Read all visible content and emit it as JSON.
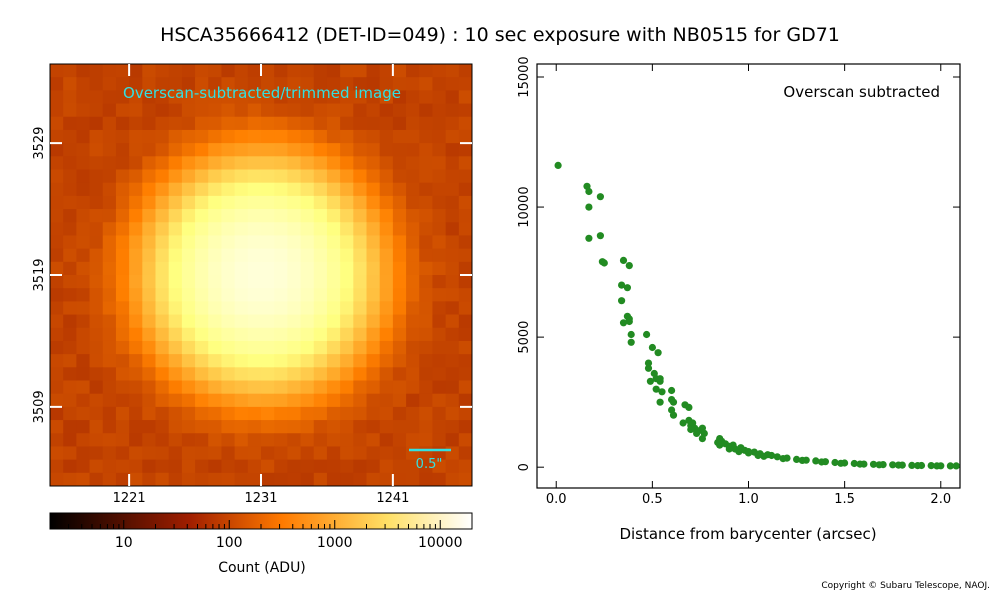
{
  "title": "HSCA35666412 (DET-ID=049) :  10 sec exposure with NB0515 for GD71",
  "copyright": "Copyright © Subaru Telescope, NAOJ.",
  "colors": {
    "scatter": "#228b22",
    "annotation": "#33e0e0"
  },
  "chart_data": [
    {
      "type": "heatmap",
      "title": "Overscan-subtracted/trimmed image",
      "colormap": "afmhot",
      "scale": "log",
      "x_ticks": [
        "1221",
        "1231",
        "1241"
      ],
      "y_ticks": [
        "3529",
        "3519",
        "3509"
      ],
      "x_range": [
        1215,
        1247
      ],
      "y_range": [
        3503,
        3535
      ],
      "peak": {
        "x": 1231,
        "y": 3519,
        "value": 10000
      },
      "scale_bar_label": "0.5\"",
      "colorbar": {
        "label": "Count (ADU)",
        "ticks": [
          "10",
          "100",
          "1000",
          "10000"
        ],
        "range": [
          2,
          20000
        ]
      }
    },
    {
      "type": "scatter",
      "title": "Overscan subtracted",
      "xlabel": "Distance from barycenter (arcsec)",
      "ylabel": "",
      "xlim": [
        -0.1,
        2.1
      ],
      "ylim": [
        -800,
        15500
      ],
      "x_ticks": [
        "0.0",
        "0.5",
        "1.0",
        "1.5",
        "2.0"
      ],
      "y_ticks": [
        "0",
        "5000",
        "10000",
        "15000"
      ],
      "points": [
        [
          0.01,
          11600
        ],
        [
          0.16,
          10800
        ],
        [
          0.17,
          10600
        ],
        [
          0.17,
          10000
        ],
        [
          0.23,
          10400
        ],
        [
          0.17,
          8800
        ],
        [
          0.23,
          8900
        ],
        [
          0.24,
          7900
        ],
        [
          0.25,
          7850
        ],
        [
          0.35,
          7950
        ],
        [
          0.38,
          7750
        ],
        [
          0.34,
          7000
        ],
        [
          0.37,
          6900
        ],
        [
          0.34,
          6400
        ],
        [
          0.37,
          5800
        ],
        [
          0.38,
          5700
        ],
        [
          0.35,
          5550
        ],
        [
          0.38,
          5600
        ],
        [
          0.39,
          5100
        ],
        [
          0.39,
          4800
        ],
        [
          0.47,
          5100
        ],
        [
          0.5,
          4600
        ],
        [
          0.53,
          4400
        ],
        [
          0.48,
          3800
        ],
        [
          0.48,
          4000
        ],
        [
          0.51,
          3600
        ],
        [
          0.52,
          3400
        ],
        [
          0.49,
          3300
        ],
        [
          0.54,
          3400
        ],
        [
          0.54,
          3300
        ],
        [
          0.52,
          3000
        ],
        [
          0.55,
          2900
        ],
        [
          0.54,
          2500
        ],
        [
          0.6,
          2950
        ],
        [
          0.6,
          2600
        ],
        [
          0.61,
          2500
        ],
        [
          0.6,
          2200
        ],
        [
          0.61,
          2000
        ],
        [
          0.67,
          2400
        ],
        [
          0.69,
          2300
        ],
        [
          0.66,
          1700
        ],
        [
          0.69,
          1800
        ],
        [
          0.7,
          1600
        ],
        [
          0.71,
          1700
        ],
        [
          0.7,
          1450
        ],
        [
          0.72,
          1500
        ],
        [
          0.74,
          1400
        ],
        [
          0.73,
          1300
        ],
        [
          0.76,
          1500
        ],
        [
          0.77,
          1300
        ],
        [
          0.76,
          1100
        ],
        [
          0.85,
          1100
        ],
        [
          0.86,
          1000
        ],
        [
          0.84,
          950
        ],
        [
          0.85,
          850
        ],
        [
          0.88,
          900
        ],
        [
          0.9,
          800
        ],
        [
          0.92,
          850
        ],
        [
          0.93,
          700
        ],
        [
          0.96,
          750
        ],
        [
          0.98,
          650
        ],
        [
          1.0,
          600
        ],
        [
          1.03,
          580
        ],
        [
          1.06,
          520
        ],
        [
          1.1,
          480
        ],
        [
          1.12,
          450
        ],
        [
          1.15,
          400
        ],
        [
          1.2,
          350
        ],
        [
          1.25,
          300
        ],
        [
          1.3,
          270
        ],
        [
          1.35,
          240
        ],
        [
          1.4,
          210
        ],
        [
          1.45,
          180
        ],
        [
          1.5,
          160
        ],
        [
          1.55,
          140
        ],
        [
          1.6,
          120
        ],
        [
          1.65,
          110
        ],
        [
          1.7,
          100
        ],
        [
          1.75,
          90
        ],
        [
          1.8,
          80
        ],
        [
          1.85,
          70
        ],
        [
          1.9,
          65
        ],
        [
          1.95,
          60
        ],
        [
          2.0,
          55
        ],
        [
          2.05,
          50
        ],
        [
          2.08,
          48
        ],
        [
          0.9,
          700
        ],
        [
          0.95,
          600
        ],
        [
          1.0,
          550
        ],
        [
          1.05,
          450
        ],
        [
          1.08,
          420
        ],
        [
          1.18,
          330
        ],
        [
          1.28,
          260
        ],
        [
          1.38,
          200
        ],
        [
          1.48,
          150
        ],
        [
          1.58,
          120
        ],
        [
          1.68,
          90
        ],
        [
          1.78,
          80
        ],
        [
          1.88,
          60
        ],
        [
          1.98,
          50
        ]
      ]
    }
  ]
}
